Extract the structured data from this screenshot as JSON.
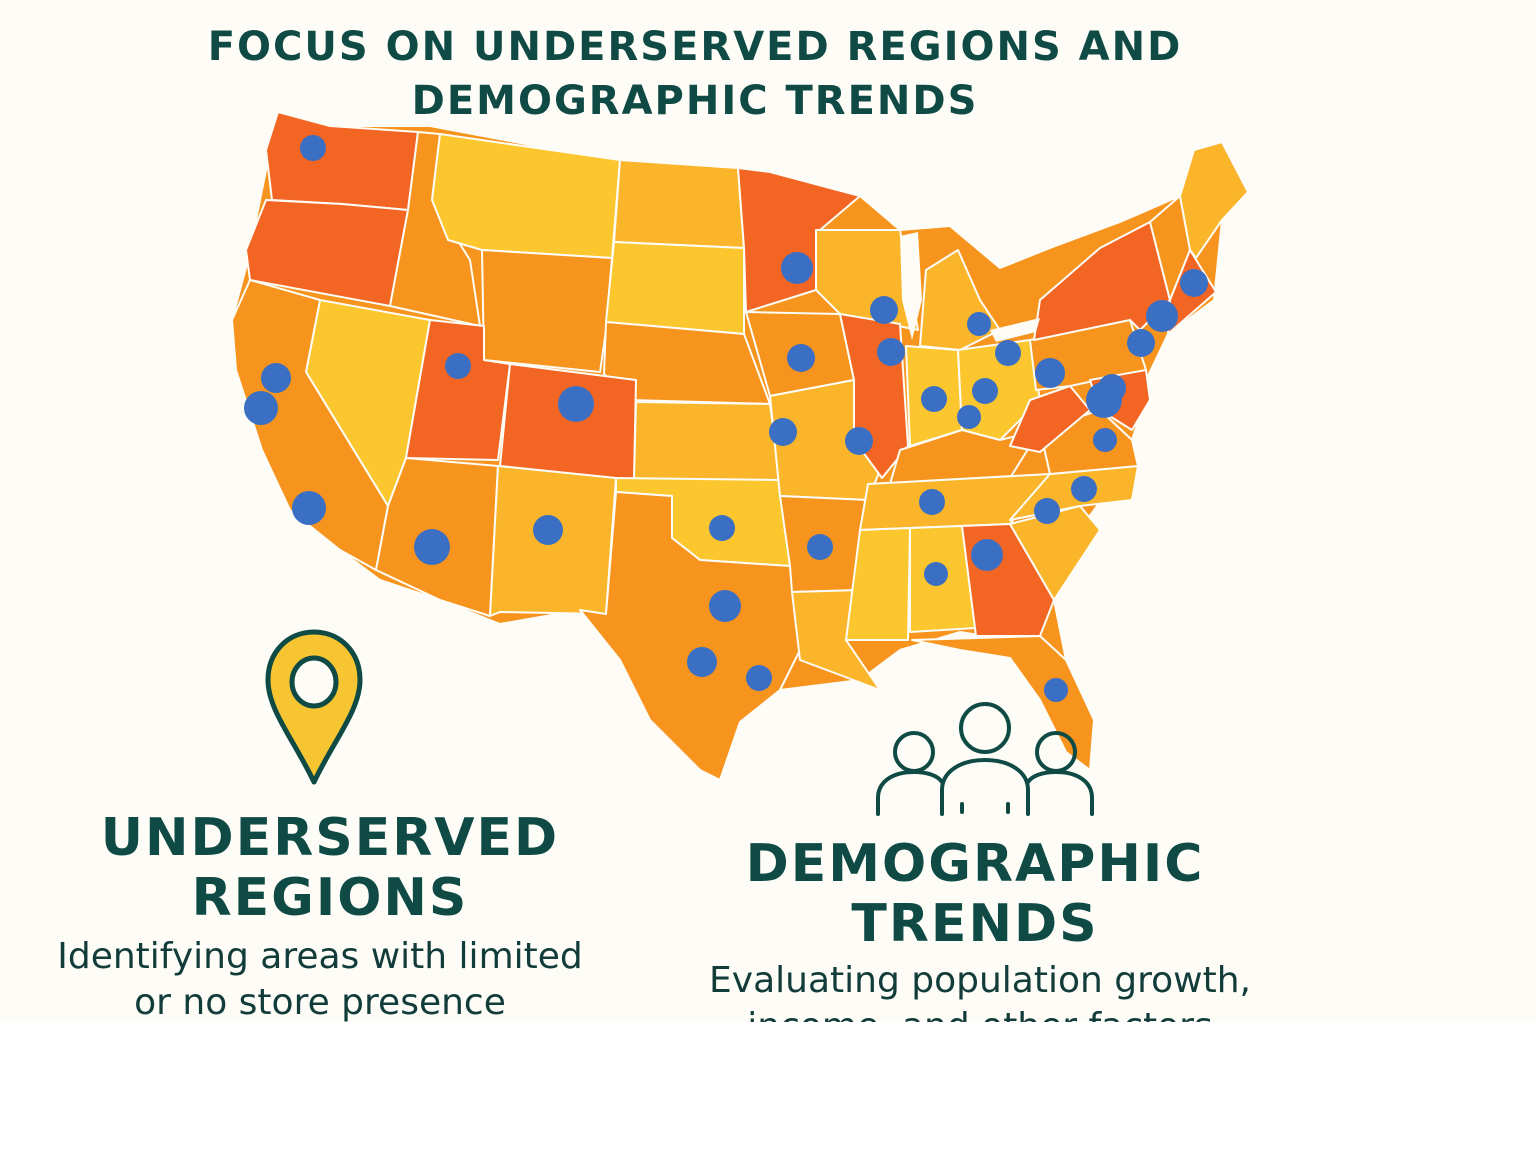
{
  "title": "FOCUS ON UNDERSERVED REGIONS AND DEMOGRAPHIC TRENDS",
  "colors": {
    "background": "#fdfcf7",
    "heading": "#0f4a45",
    "state_red": "#f26522",
    "state_orange": "#f7941d",
    "state_yellow": "#fcc72e",
    "store_marker": "#3a6fc4"
  },
  "map": {
    "region": "Contiguous United States",
    "marker_icon": "blue-dot-store-marker"
  },
  "sections": [
    {
      "icon": "map-pin-icon",
      "title": "UNDERSERVED REGIONS",
      "description": "Identifying areas with limited or no store presence"
    },
    {
      "icon": "people-group-icon",
      "title": "DEMOGRAPHIC TRENDS",
      "description": "Evaluating population growth, income, and other factors"
    }
  ]
}
